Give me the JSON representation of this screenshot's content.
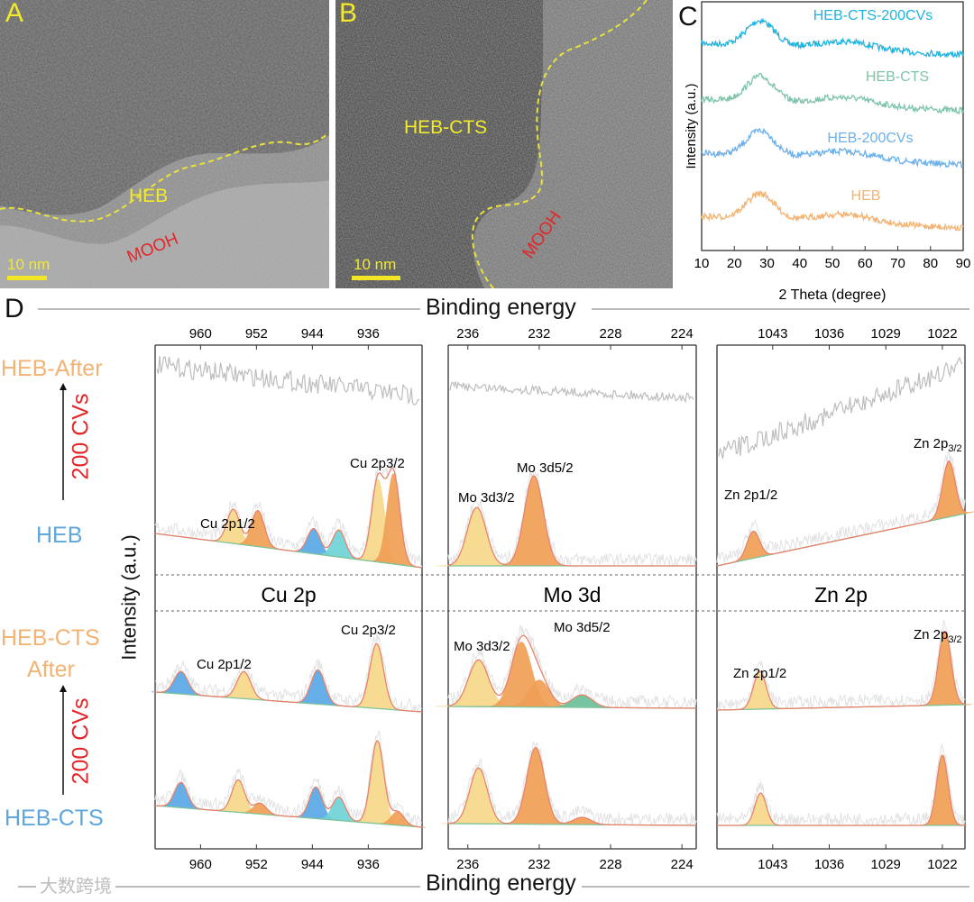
{
  "panel_a": {
    "letter": "A",
    "sample_label": "HEB",
    "phase_label": "MOOH",
    "scale_bar": "10 nm"
  },
  "panel_b": {
    "letter": "B",
    "sample_label": "HEB-CTS",
    "phase_label": "MOOH",
    "scale_bar": "10 nm"
  },
  "panel_c": {
    "letter": "C",
    "xlabel": "2 Theta (degree)",
    "ylabel": "Intensity (a.u.)",
    "xticks": [
      "10",
      "20",
      "30",
      "40",
      "50",
      "60",
      "70",
      "80",
      "90"
    ],
    "series": [
      {
        "name": "HEB-CTS-200CVs",
        "color": "#1fb4df"
      },
      {
        "name": "HEB-CTS",
        "color": "#7ec4a9"
      },
      {
        "name": "HEB-200CVs",
        "color": "#6db0ea"
      },
      {
        "name": "HEB",
        "color": "#f2b374"
      }
    ]
  },
  "panel_d": {
    "letter": "D",
    "header": "Binding energy",
    "footer": "Binding energy",
    "ylabel": "Intensity (a.u.)",
    "upper_group": {
      "top": "HEB-After",
      "arrow": "200 CVs",
      "bottom": "HEB"
    },
    "lower_group": {
      "top_line1": "HEB-CTS",
      "top_line2": "After",
      "arrow": "200 CVs",
      "bottom": "HEB-CTS"
    },
    "watermark": "大数跨境",
    "colors": {
      "yellow": "#f8d88a",
      "orange": "#f0a055",
      "blue": "#5aa8e6",
      "cyan": "#6fd3d6",
      "teal": "#6cbf9c",
      "envelope": "#e8826b",
      "baseline": "#7cc49a",
      "raw": "#c8c8c8"
    },
    "regions": [
      {
        "name": "Cu 2p",
        "range": [
          966.5,
          928.3
        ],
        "ticks": [
          "960",
          "952",
          "944",
          "936"
        ],
        "tick_values": [
          960,
          952,
          944,
          936
        ],
        "upper_labels": [
          "Cu 2p1/2",
          "Cu 2p3/2"
        ],
        "lower_labels": [
          "Cu 2p1/2",
          "Cu 2p3/2"
        ],
        "spectra": {
          "heb": {
            "baseline": [
              40,
              2
            ],
            "width": 1.3,
            "peaks": [
              [
                955.3,
                38,
                "yellow"
              ],
              [
                951.8,
                40,
                "orange"
              ],
              [
                943.8,
                28,
                "blue"
              ],
              [
                940.2,
                30,
                "cyan"
              ],
              [
                934.6,
                92,
                "yellow"
              ],
              [
                932.4,
                100,
                "orange"
              ]
            ]
          },
          "heb_cts_after": {
            "baseline": [
              24,
              2
            ],
            "width": 1.4,
            "peaks": [
              [
                962.8,
                25,
                "blue"
              ],
              [
                953.8,
                30,
                "yellow"
              ],
              [
                943.2,
                38,
                "blue"
              ],
              [
                934.8,
                72,
                "yellow"
              ]
            ]
          },
          "heb_cts": {
            "baseline": [
              26,
              2
            ],
            "width": 1.3,
            "peaks": [
              [
                962.8,
                28,
                "blue"
              ],
              [
                954.6,
                36,
                "yellow"
              ],
              [
                951.5,
                12,
                "orange"
              ],
              [
                943.5,
                35,
                "blue"
              ],
              [
                940.2,
                26,
                "cyan"
              ],
              [
                934.7,
                92,
                "yellow"
              ],
              [
                931.8,
                15,
                "orange"
              ]
            ]
          }
        }
      },
      {
        "name": "Mo 3d",
        "range": [
          237.1,
          223.2
        ],
        "ticks": [
          "236",
          "232",
          "228",
          "224"
        ],
        "tick_values": [
          236,
          232,
          228,
          224
        ],
        "upper_labels": [
          "Mo 3d3/2",
          "Mo 3d5/2"
        ],
        "lower_labels": [
          "Mo 3d3/2",
          "Mo 3d5/2"
        ],
        "spectra": {
          "heb": {
            "baseline": [
              4,
              4
            ],
            "width": 0.75,
            "peaks": [
              [
                235.5,
                65,
                "yellow"
              ],
              [
                232.3,
                100,
                "orange"
              ]
            ]
          },
          "heb_cts_after": {
            "baseline": [
              8,
              6
            ],
            "width": 0.8,
            "peaks": [
              [
                235.4,
                52,
                "yellow"
              ],
              [
                233.0,
                72,
                "orange"
              ],
              [
                232.0,
                30,
                "orange"
              ],
              [
                229.6,
                14,
                "teal"
              ]
            ]
          },
          "heb_cts": {
            "baseline": [
              6,
              4
            ],
            "width": 0.7,
            "peaks": [
              [
                235.4,
                62,
                "yellow"
              ],
              [
                232.2,
                85,
                "orange"
              ],
              [
                229.6,
                8,
                "orange"
              ]
            ]
          }
        }
      },
      {
        "name": "Zn 2p",
        "range": [
          1049.9,
          1019.2
        ],
        "ticks": [
          "1043",
          "1036",
          "1029",
          "1022"
        ],
        "tick_values": [
          1043,
          1036,
          1029,
          1022
        ],
        "upper_labels": [
          "Zn 2p1/2",
          "Zn 2p"
        ],
        "sub": "3/2",
        "spectra": {
          "heb": {
            "baseline": [
              4,
              62
            ],
            "width": 1.1,
            "peaks": [
              [
                1045.4,
                30,
                "orange"
              ],
              [
                1021.2,
                62,
                "orange"
              ]
            ]
          },
          "heb_cts_after": {
            "baseline": [
              4,
              10
            ],
            "width": 1.1,
            "peaks": [
              [
                1044.6,
                42,
                "yellow"
              ],
              [
                1021.7,
                82,
                "orange"
              ]
            ]
          },
          "heb_cts": {
            "baseline": [
              4,
              4
            ],
            "width": 1.0,
            "peaks": [
              [
                1044.5,
                36,
                "yellow"
              ],
              [
                1022.0,
                78,
                "orange"
              ]
            ]
          }
        }
      }
    ]
  }
}
